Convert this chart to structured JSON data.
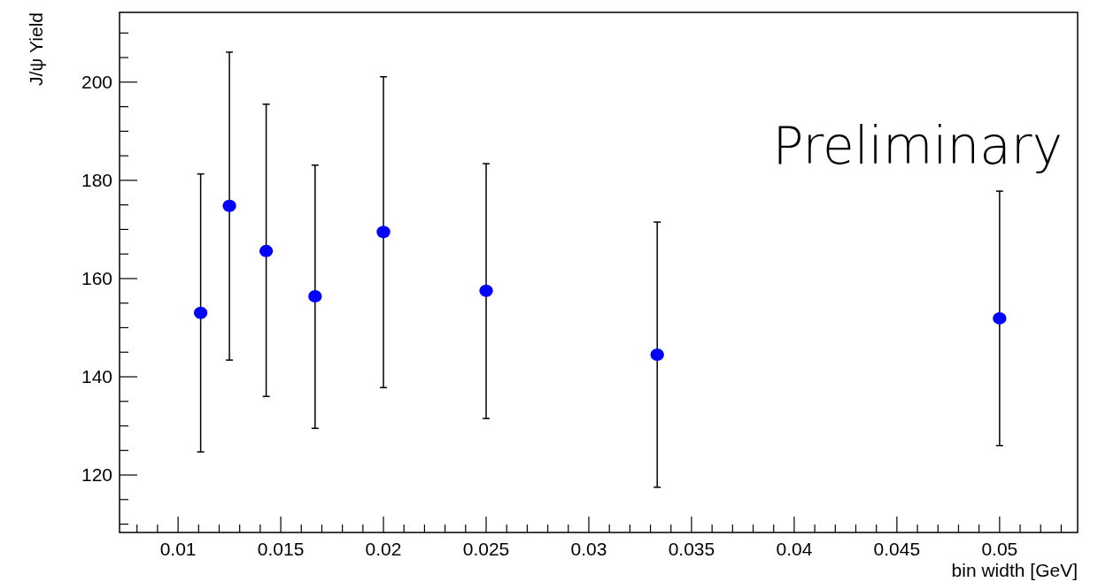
{
  "chart_data": {
    "type": "scatter",
    "xlabel": "bin width [GeV]",
    "ylabel": "J/ψ Yield",
    "annotations": [
      "Preliminary"
    ],
    "marker": "circle",
    "grid": false,
    "x": [
      0.0111,
      0.0125,
      0.01429,
      0.01667,
      0.02,
      0.025,
      0.03333,
      0.05
    ],
    "series": [
      {
        "color": "#0000ff",
        "values": [
          153.0,
          174.8,
          165.6,
          156.4,
          169.5,
          157.5,
          144.5,
          151.9
        ],
        "errors": [
          [
            124.7,
            181.3
          ],
          [
            143.4,
            206.1
          ],
          [
            136.0,
            195.5
          ],
          [
            129.5,
            183.1
          ],
          [
            137.8,
            201.1
          ],
          [
            131.5,
            183.4
          ],
          [
            117.5,
            171.5
          ],
          [
            126.0,
            177.8
          ]
        ]
      }
    ],
    "xlim": [
      0.00715,
      0.0538
    ],
    "ylim": [
      108.3,
      214.2
    ],
    "xticks": [
      {
        "value": 0.008,
        "label": null
      },
      {
        "value": 0.009,
        "label": null
      },
      0.01,
      {
        "value": 0.011,
        "label": null
      },
      {
        "value": 0.012,
        "label": null
      },
      {
        "value": 0.013,
        "label": null
      },
      {
        "value": 0.014,
        "label": null
      },
      0.015,
      {
        "value": 0.016,
        "label": null
      },
      {
        "value": 0.017,
        "label": null
      },
      {
        "value": 0.018,
        "label": null
      },
      {
        "value": 0.019,
        "label": null
      },
      0.02,
      {
        "value": 0.021,
        "label": null
      },
      {
        "value": 0.022,
        "label": null
      },
      {
        "value": 0.023,
        "label": null
      },
      {
        "value": 0.024,
        "label": null
      },
      0.025,
      {
        "value": 0.026,
        "label": null
      },
      {
        "value": 0.027,
        "label": null
      },
      {
        "value": 0.028,
        "label": null
      },
      {
        "value": 0.029,
        "label": null
      },
      0.03,
      {
        "value": 0.031,
        "label": null
      },
      {
        "value": 0.032,
        "label": null
      },
      {
        "value": 0.033,
        "label": null
      },
      {
        "value": 0.034,
        "label": null
      },
      0.035,
      {
        "value": 0.036,
        "label": null
      },
      {
        "value": 0.037,
        "label": null
      },
      {
        "value": 0.038,
        "label": null
      },
      {
        "value": 0.039,
        "label": null
      },
      0.04,
      {
        "value": 0.041,
        "label": null
      },
      {
        "value": 0.042,
        "label": null
      },
      {
        "value": 0.043,
        "label": null
      },
      {
        "value": 0.044,
        "label": null
      },
      0.045,
      {
        "value": 0.046,
        "label": null
      },
      {
        "value": 0.047,
        "label": null
      },
      {
        "value": 0.048,
        "label": null
      },
      {
        "value": 0.049,
        "label": null
      },
      0.05,
      {
        "value": 0.051,
        "label": null
      },
      {
        "value": 0.052,
        "label": null
      },
      {
        "value": 0.053,
        "label": null
      }
    ],
    "yticks": [
      {
        "value": 110,
        "label": null
      },
      {
        "value": 115,
        "label": null
      },
      120,
      {
        "value": 125,
        "label": null
      },
      {
        "value": 130,
        "label": null
      },
      {
        "value": 135,
        "label": null
      },
      140,
      {
        "value": 145,
        "label": null
      },
      {
        "value": 150,
        "label": null
      },
      {
        "value": 155,
        "label": null
      },
      160,
      {
        "value": 165,
        "label": null
      },
      {
        "value": 170,
        "label": null
      },
      {
        "value": 175,
        "label": null
      },
      180,
      {
        "value": 185,
        "label": null
      },
      {
        "value": 190,
        "label": null
      },
      {
        "value": 195,
        "label": null
      },
      200,
      {
        "value": 205,
        "label": null
      },
      {
        "value": 210,
        "label": null
      }
    ]
  }
}
